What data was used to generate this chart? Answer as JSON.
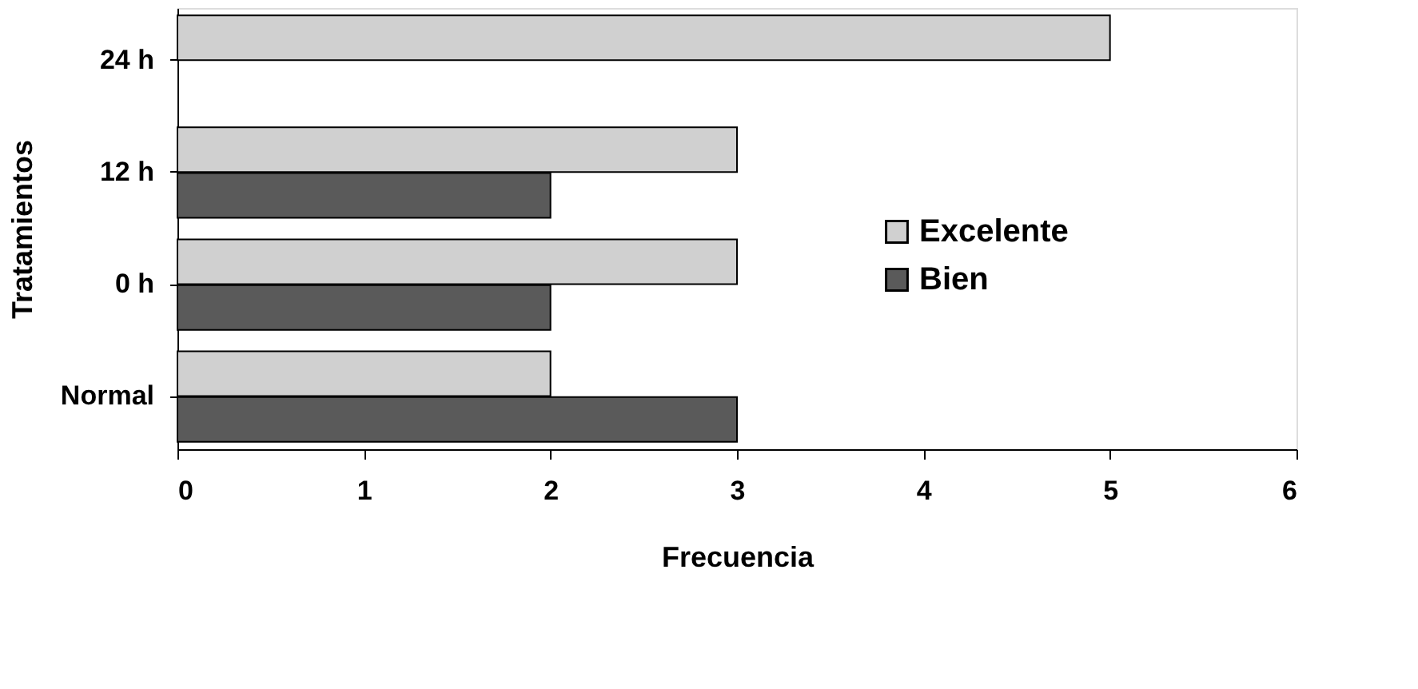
{
  "chart_data": {
    "type": "bar",
    "orientation": "horizontal",
    "xlabel": "Frecuencia",
    "ylabel": "Tratamientos",
    "categories": [
      "24 h",
      "12 h",
      "0 h",
      "Normal"
    ],
    "series": [
      {
        "name": "Excelente",
        "color": "#d0d0d0",
        "values": [
          5,
          3,
          3,
          2
        ]
      },
      {
        "name": "Bien",
        "color": "#5a5a5a",
        "values": [
          null,
          2,
          2,
          3
        ]
      }
    ],
    "xlim": [
      0,
      6
    ],
    "xticks": [
      0,
      1,
      2,
      3,
      4,
      5,
      6
    ],
    "grid": false,
    "legend": "right"
  }
}
